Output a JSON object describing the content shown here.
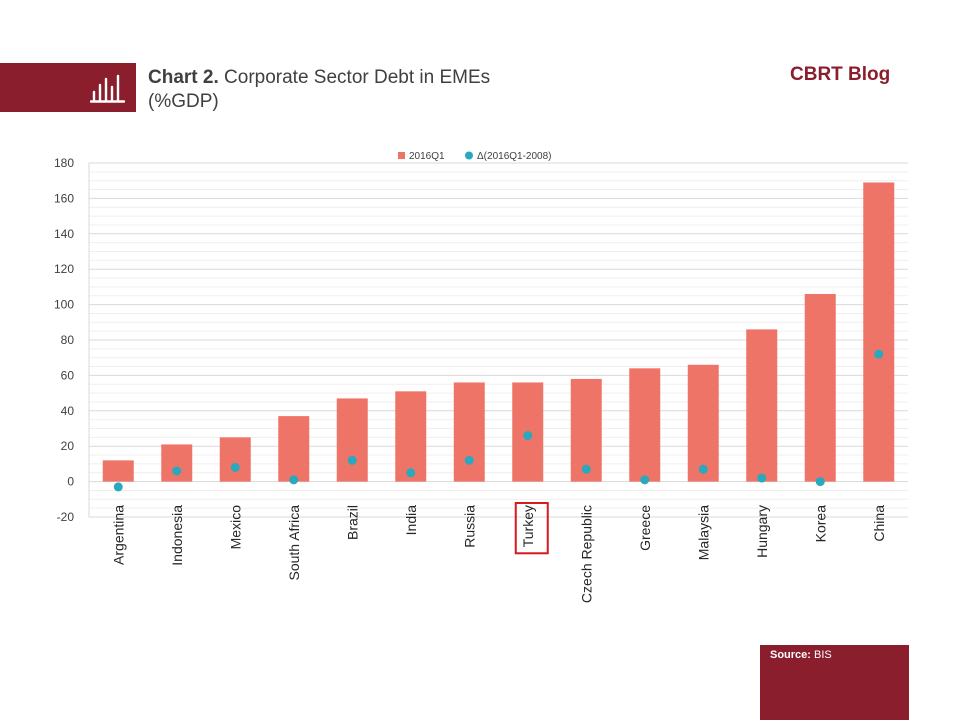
{
  "header": {
    "chart_number": "Chart 2.",
    "title_line1": "Corporate Sector Debt in EMEs",
    "title_line2": "(%GDP)",
    "brand": "CBRT Blog",
    "icon": "bar-chart-icon"
  },
  "source": {
    "label": "Source:",
    "value": "BIS"
  },
  "colors": {
    "accent": "#8b1e2c",
    "bar": "#ee7468",
    "dot": "#2aa8bd",
    "highlight": "#d71920"
  },
  "chart_data": {
    "type": "bar",
    "categories": [
      "Argentina",
      "Indonesia",
      "Mexico",
      "South Africa",
      "Brazil",
      "India",
      "Russia",
      "Turkey",
      "Czech Republic",
      "Greece",
      "Malaysia",
      "Hungary",
      "Korea",
      "China"
    ],
    "series": [
      {
        "name": "2016Q1",
        "type": "bar",
        "values": [
          12,
          21,
          25,
          37,
          47,
          51,
          56,
          56,
          58,
          64,
          66,
          86,
          106,
          169
        ]
      },
      {
        "name": "Δ(2016Q1-2008)",
        "type": "scatter",
        "values": [
          -3,
          6,
          8,
          1,
          12,
          5,
          12,
          26,
          7,
          1,
          7,
          2,
          0,
          72
        ]
      }
    ],
    "ylim": [
      -20,
      180
    ],
    "yticks": [
      -20,
      0,
      20,
      40,
      60,
      80,
      100,
      120,
      140,
      160,
      180
    ],
    "highlighted_category": "Turkey",
    "legend": "top-center",
    "grid": true
  }
}
